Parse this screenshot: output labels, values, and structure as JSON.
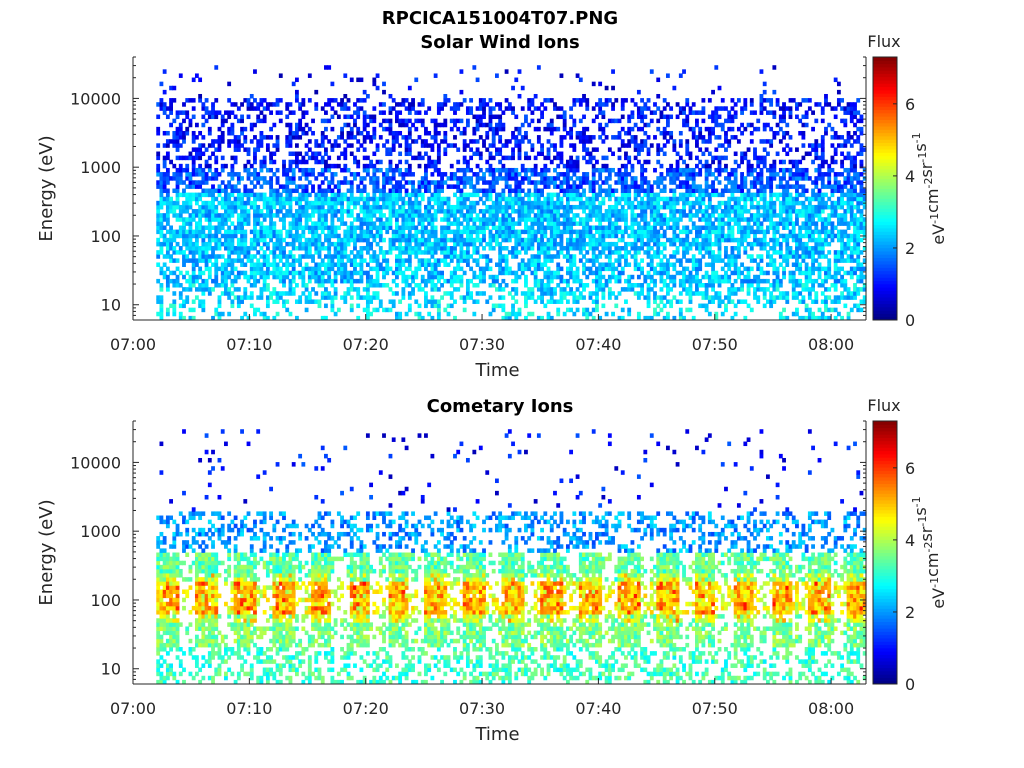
{
  "figure_title": "RPCICA151004T07.PNG",
  "chart_data": [
    {
      "type": "heatmap",
      "title": "Solar Wind Ions",
      "xlabel": "Time",
      "ylabel": "Energy (eV)",
      "xlim": [
        "07:00",
        "08:03"
      ],
      "ylim": [
        6,
        40000
      ],
      "yscale": "log",
      "x_ticks": [
        "07:00",
        "07:10",
        "07:20",
        "07:30",
        "07:40",
        "07:50",
        "08:00"
      ],
      "y_ticks": [
        "10",
        "100",
        "1000",
        "10000"
      ],
      "data_start": "07:02",
      "data_end": "08:03",
      "colorbar": {
        "title": "Flux",
        "label": "eV-1cm-2sr-1s-1",
        "range": [
          0,
          7.3
        ],
        "ticks": [
          "0",
          "2",
          "4",
          "6"
        ],
        "colormap": "jet"
      },
      "energy_bands": [
        {
          "energy_min": 6,
          "energy_max": 10,
          "flux": 2.6,
          "occupancy": 0.3
        },
        {
          "energy_min": 10,
          "energy_max": 20,
          "flux": 2.5,
          "occupancy": 0.45
        },
        {
          "energy_min": 20,
          "energy_max": 60,
          "flux": 2.3,
          "occupancy": 0.6
        },
        {
          "energy_min": 60,
          "energy_max": 400,
          "flux": 2.3,
          "occupancy": 0.75
        },
        {
          "energy_min": 400,
          "energy_max": 1000,
          "flux": 1.5,
          "occupancy": 0.6
        },
        {
          "energy_min": 1000,
          "energy_max": 10000,
          "flux": 1.0,
          "occupancy": 0.38
        },
        {
          "energy_min": 10000,
          "energy_max": 30000,
          "flux": 0.9,
          "occupancy": 0.06
        }
      ]
    },
    {
      "type": "heatmap",
      "title": "Cometary Ions",
      "xlabel": "Time",
      "ylabel": "Energy (eV)",
      "xlim": [
        "07:00",
        "08:03"
      ],
      "ylim": [
        6,
        40000
      ],
      "yscale": "log",
      "x_ticks": [
        "07:00",
        "07:10",
        "07:20",
        "07:30",
        "07:40",
        "07:50",
        "08:00"
      ],
      "y_ticks": [
        "10",
        "100",
        "1000",
        "10000"
      ],
      "data_start": "07:02",
      "data_end": "08:03",
      "colorbar": {
        "title": "Flux",
        "label": "eV-1cm-2sr-1s-1",
        "range": [
          0,
          7.3
        ],
        "ticks": [
          "0",
          "2",
          "4",
          "6"
        ],
        "colormap": "jet"
      },
      "energy_bands": [
        {
          "energy_min": 6,
          "energy_max": 20,
          "flux": 3.2,
          "occupancy": 0.4
        },
        {
          "energy_min": 20,
          "energy_max": 60,
          "flux": 3.6,
          "occupancy": 0.85
        },
        {
          "energy_min": 60,
          "energy_max": 200,
          "flux": 4.4,
          "occupancy": 0.95
        },
        {
          "energy_min": 200,
          "energy_max": 500,
          "flux": 3.4,
          "occupancy": 0.9
        },
        {
          "energy_min": 500,
          "energy_max": 2000,
          "flux": 2.0,
          "occupancy": 0.35
        },
        {
          "energy_min": 2000,
          "energy_max": 30000,
          "flux": 1.0,
          "occupancy": 0.03
        }
      ],
      "oscillation_period_minutes": 3.3
    }
  ]
}
